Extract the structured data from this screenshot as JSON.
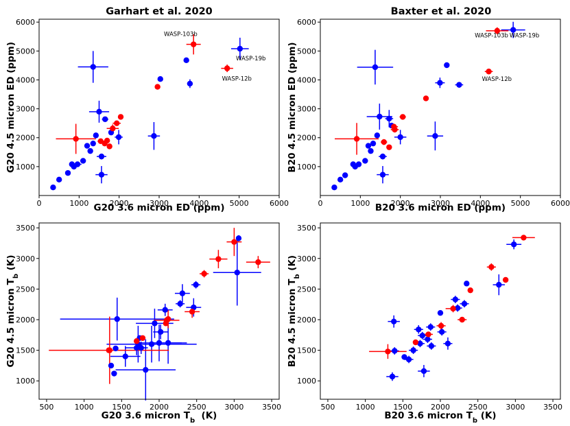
{
  "colors": {
    "blue": "#0000ff",
    "red": "#ff0000"
  },
  "chart_data": [
    {
      "type": "scatter",
      "title": "Garhart et al. 2020",
      "xlabel": "G20 3.6 micron ED (ppm)",
      "ylabel": "G20 4.5 micron ED (ppm)",
      "xlim": [
        0,
        6000
      ],
      "ylim": [
        0,
        6100
      ],
      "xticks": [
        0,
        1000,
        2000,
        3000,
        4000,
        5000,
        6000
      ],
      "yticks": [
        1000,
        2000,
        3000,
        4000,
        5000,
        6000
      ],
      "series": [
        {
          "name": "blue",
          "color": "#0000ff",
          "points": [
            [
              350,
              280,
              0,
              0
            ],
            [
              500,
              550,
              60,
              50
            ],
            [
              720,
              780,
              0,
              0
            ],
            [
              820,
              1080,
              0,
              0
            ],
            [
              870,
              1000,
              0,
              0
            ],
            [
              960,
              1080,
              100,
              80
            ],
            [
              1100,
              1200,
              60,
              60
            ],
            [
              1200,
              1720,
              50,
              50
            ],
            [
              1280,
              1540,
              60,
              50
            ],
            [
              1350,
              1800,
              0,
              0
            ],
            [
              1350,
              4450,
              380,
              550
            ],
            [
              1420,
              2080,
              0,
              0
            ],
            [
              1500,
              2900,
              250,
              380
            ],
            [
              1560,
              1350,
              120,
              100
            ],
            [
              1560,
              720,
              150,
              300
            ],
            [
              1650,
              2640,
              80,
              80
            ],
            [
              1800,
              2180,
              0,
              0
            ],
            [
              1990,
              2020,
              100,
              250
            ],
            [
              2870,
              2060,
              150,
              480
            ],
            [
              3030,
              4030,
              0,
              0
            ],
            [
              3680,
              4680,
              60,
              60
            ],
            [
              3770,
              3870,
              70,
              150
            ],
            [
              5020,
              5080,
              220,
              380
            ]
          ]
        },
        {
          "name": "red",
          "color": "#ff0000",
          "points": [
            [
              920,
              1960,
              500,
              520
            ],
            [
              1540,
              1880,
              80,
              70
            ],
            [
              1640,
              1800,
              60,
              70
            ],
            [
              1700,
              1900,
              60,
              60
            ],
            [
              1760,
              1700,
              0,
              0
            ],
            [
              1840,
              2320,
              150,
              140
            ],
            [
              1940,
              2500,
              100,
              80
            ],
            [
              2040,
              2720,
              60,
              60
            ],
            [
              2960,
              3760,
              0,
              0
            ],
            [
              3860,
              5230,
              180,
              350
            ],
            [
              4700,
              4400,
              150,
              130
            ]
          ]
        }
      ],
      "annotations": [
        {
          "text": "WASP-103b",
          "x": 3120,
          "y": 5520
        },
        {
          "text": "WASP-19b",
          "x": 4920,
          "y": 4670
        },
        {
          "text": "WASP-12b",
          "x": 4570,
          "y": 3970
        }
      ]
    },
    {
      "type": "scatter",
      "title": "Baxter et al. 2020",
      "xlabel": "B20 3.6 micron ED (ppm)",
      "ylabel": "B20 4.5 micron ED (ppm)",
      "xlim": [
        0,
        6000
      ],
      "ylim": [
        0,
        6100
      ],
      "xticks": [
        0,
        1000,
        2000,
        3000,
        4000,
        5000,
        6000
      ],
      "yticks": [
        1000,
        2000,
        3000,
        4000,
        5000,
        6000
      ],
      "series": [
        {
          "name": "blue",
          "color": "#0000ff",
          "points": [
            [
              350,
              280,
              0,
              0
            ],
            [
              500,
              550,
              50,
              40
            ],
            [
              620,
              700,
              0,
              0
            ],
            [
              820,
              1080,
              0,
              0
            ],
            [
              870,
              1000,
              0,
              0
            ],
            [
              960,
              1080,
              60,
              60
            ],
            [
              1120,
              1200,
              60,
              60
            ],
            [
              1200,
              1720,
              60,
              60
            ],
            [
              1260,
              1540,
              60,
              60
            ],
            [
              1320,
              1800,
              0,
              0
            ],
            [
              1370,
              4440,
              450,
              600
            ],
            [
              1420,
              2080,
              0,
              0
            ],
            [
              1480,
              2730,
              320,
              450
            ],
            [
              1560,
              1350,
              100,
              100
            ],
            [
              1560,
              720,
              150,
              300
            ],
            [
              1720,
              2660,
              100,
              300
            ],
            [
              1780,
              2420,
              0,
              0
            ],
            [
              2000,
              2020,
              150,
              250
            ],
            [
              2870,
              2060,
              200,
              500
            ],
            [
              2990,
              3900,
              120,
              180
            ],
            [
              3160,
              4510,
              60,
              60
            ],
            [
              3470,
              3830,
              100,
              100
            ],
            [
              4820,
              5730,
              300,
              280
            ]
          ]
        },
        {
          "name": "red",
          "color": "#ff0000",
          "points": [
            [
              910,
              1960,
              550,
              550
            ],
            [
              1590,
              1850,
              80,
              100
            ],
            [
              1720,
              1670,
              0,
              0
            ],
            [
              1840,
              2380,
              100,
              100
            ],
            [
              1860,
              2280,
              100,
              100
            ],
            [
              2060,
              2720,
              80,
              60
            ],
            [
              2640,
              3360,
              0,
              0
            ],
            [
              4420,
              5700,
              280,
              120
            ],
            [
              4210,
              4290,
              100,
              70
            ]
          ]
        }
      ],
      "annotations": [
        {
          "text": "WASP-103b",
          "x": 3860,
          "y": 5470
        },
        {
          "text": "WASP-19b",
          "x": 4730,
          "y": 5470
        },
        {
          "text": "WASP-12b",
          "x": 4040,
          "y": 3960
        }
      ]
    },
    {
      "type": "scatter",
      "title": "",
      "xlabel": "G20 3.6 micron T",
      "xlabel_sub": "b",
      "xlabel_suffix": "  (K)",
      "ylabel": "G20 4.5 micron T",
      "ylabel_sub": "b",
      "ylabel_suffix": " (K)",
      "xlim": [
        400,
        3600
      ],
      "ylim": [
        700,
        3580
      ],
      "xticks": [
        500,
        1000,
        1500,
        2000,
        2500,
        3000,
        3500
      ],
      "yticks": [
        1000,
        1500,
        2000,
        2500,
        3000,
        3500
      ],
      "series": [
        {
          "name": "blue",
          "color": "#0000ff",
          "points": [
            [
              1360,
              1250,
              0,
              0
            ],
            [
              1400,
              1120,
              0,
              0
            ],
            [
              1420,
              1530,
              0,
              0
            ],
            [
              1440,
              2010,
              760,
              350
            ],
            [
              1550,
              1400,
              200,
              170
            ],
            [
              1700,
              1540,
              150,
              120
            ],
            [
              1720,
              1600,
              300,
              300
            ],
            [
              1740,
              1700,
              0,
              0
            ],
            [
              1760,
              1540,
              60,
              100
            ],
            [
              1820,
              1180,
              400,
              500
            ],
            [
              1900,
              1600,
              600,
              300
            ],
            [
              1940,
              1940,
              250,
              240
            ],
            [
              2000,
              1620,
              300,
              300
            ],
            [
              2020,
              1800,
              100,
              120
            ],
            [
              2080,
              2160,
              100,
              100
            ],
            [
              2120,
              1620,
              250,
              340
            ],
            [
              2280,
              2260,
              60,
              60
            ],
            [
              2310,
              2430,
              100,
              150
            ],
            [
              2460,
              2200,
              100,
              150
            ],
            [
              2490,
              2570,
              60,
              60
            ],
            [
              3040,
              2770,
              320,
              540
            ],
            [
              3060,
              3330,
              0,
              50
            ]
          ]
        },
        {
          "name": "red",
          "color": "#ff0000",
          "points": [
            [
              1330,
              1500,
              800,
              0
            ],
            [
              1340,
              1500,
              0,
              550
            ],
            [
              1700,
              1650,
              0,
              0
            ],
            [
              1780,
              1700,
              0,
              0
            ],
            [
              2090,
              1940,
              0,
              0
            ],
            [
              2100,
              1990,
              170,
              0
            ],
            [
              2120,
              2010,
              0,
              150
            ],
            [
              2440,
              2130,
              100,
              100
            ],
            [
              2600,
              2750,
              60,
              60
            ],
            [
              2790,
              2990,
              120,
              150
            ],
            [
              3000,
              3270,
              100,
              230
            ],
            [
              3320,
              2940,
              160,
              100
            ]
          ]
        }
      ],
      "annotations": []
    },
    {
      "type": "scatter",
      "title": "",
      "xlabel": "B20 3.6 micron T",
      "xlabel_sub": "b",
      "xlabel_suffix": " (K)",
      "ylabel": "B20 4.5 micron T",
      "ylabel_sub": "b",
      "ylabel_suffix": " (K)",
      "xlim": [
        400,
        3600
      ],
      "ylim": [
        700,
        3580
      ],
      "xticks": [
        500,
        1000,
        1500,
        2000,
        2500,
        3000,
        3500
      ],
      "yticks": [
        1000,
        1500,
        2000,
        2500,
        3000,
        3500
      ],
      "series": [
        {
          "name": "blue",
          "color": "#0000ff",
          "points": [
            [
              1360,
              1070,
              80,
              70
            ],
            [
              1380,
              1970,
              80,
              100
            ],
            [
              1390,
              1490,
              60,
              60
            ],
            [
              1520,
              1390,
              0,
              0
            ],
            [
              1580,
              1350,
              60,
              60
            ],
            [
              1640,
              1500,
              60,
              60
            ],
            [
              1710,
              1840,
              60,
              70
            ],
            [
              1730,
              1610,
              60,
              60
            ],
            [
              1760,
              1740,
              60,
              60
            ],
            [
              1780,
              1160,
              80,
              100
            ],
            [
              1830,
              1680,
              60,
              60
            ],
            [
              1870,
              1880,
              60,
              60
            ],
            [
              1880,
              1570,
              60,
              60
            ],
            [
              2000,
              2110,
              0,
              0
            ],
            [
              2020,
              1800,
              60,
              60
            ],
            [
              2100,
              1610,
              60,
              100
            ],
            [
              2200,
              2330,
              60,
              60
            ],
            [
              2230,
              2190,
              60,
              60
            ],
            [
              2320,
              2260,
              60,
              60
            ],
            [
              2350,
              2590,
              0,
              0
            ],
            [
              2780,
              2570,
              80,
              170
            ],
            [
              2980,
              3230,
              100,
              80
            ]
          ]
        },
        {
          "name": "red",
          "color": "#ff0000",
          "points": [
            [
              1300,
              1480,
              250,
              120
            ],
            [
              1670,
              1630,
              0,
              0
            ],
            [
              1840,
              1760,
              60,
              0
            ],
            [
              2010,
              1900,
              60,
              60
            ],
            [
              2170,
              2180,
              100,
              60
            ],
            [
              2290,
              2000,
              60,
              0
            ],
            [
              2400,
              2480,
              0,
              0
            ],
            [
              2680,
              2860,
              60,
              60
            ],
            [
              2870,
              2650,
              0,
              0
            ],
            [
              3110,
              3340,
              150,
              0
            ]
          ]
        }
      ],
      "annotations": []
    }
  ]
}
